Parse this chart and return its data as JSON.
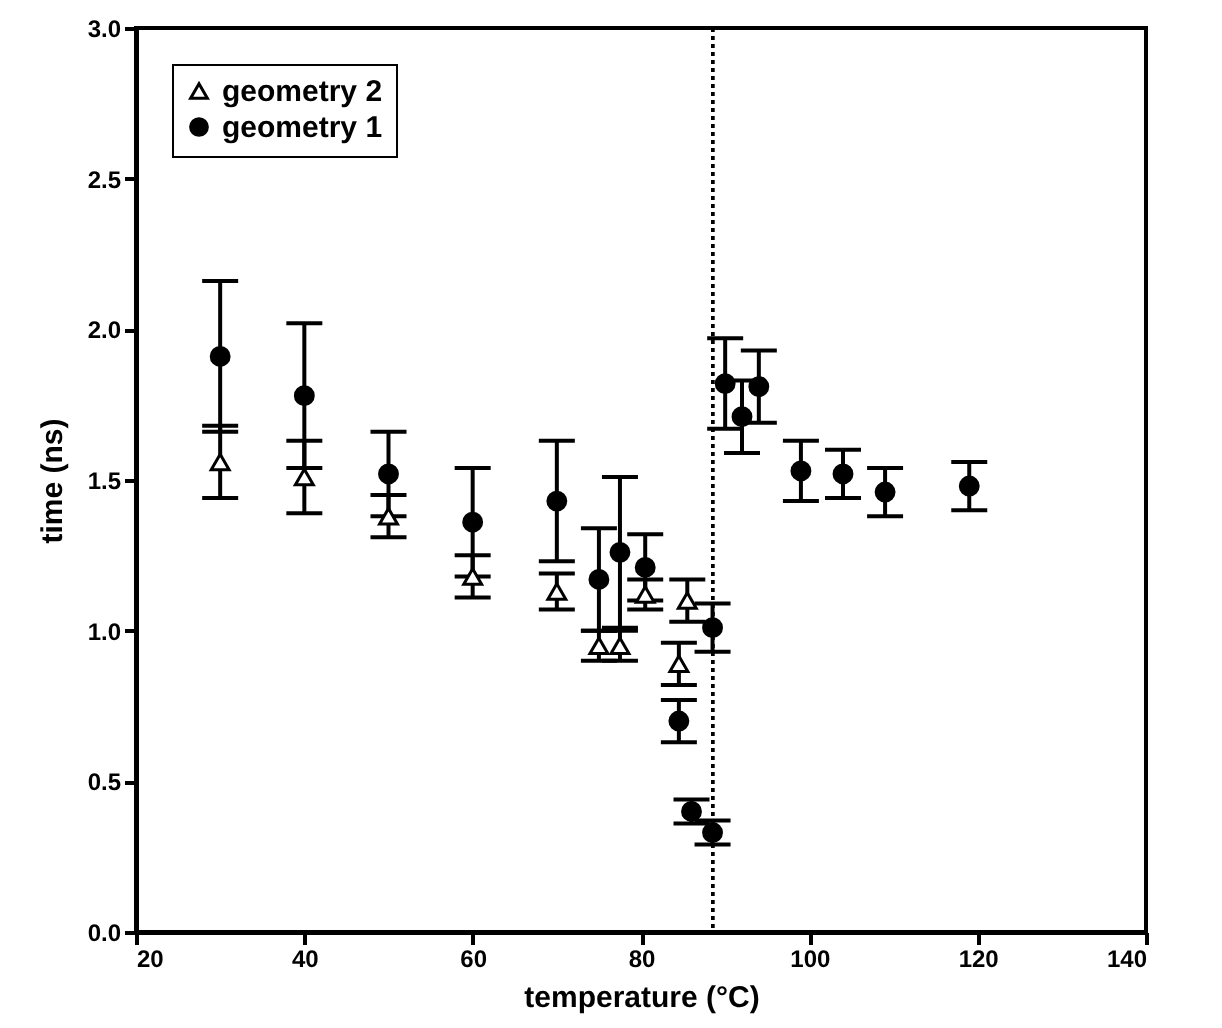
{
  "chart_data": {
    "type": "scatter",
    "xlabel": "temperature (°C)",
    "ylabel": "time (ns)",
    "xlim": [
      20,
      140
    ],
    "xticks": [
      20,
      40,
      60,
      80,
      100,
      120,
      140
    ],
    "ylim": [
      0,
      3
    ],
    "yticks": [
      {
        "value": 0,
        "label": "0.0"
      },
      {
        "value": 0.5,
        "label": "0.5"
      },
      {
        "value": 1,
        "label": "1.0"
      },
      {
        "value": 1.5,
        "label": "1.5"
      },
      {
        "value": 2,
        "label": "2.0"
      },
      {
        "value": 2.5,
        "label": "2.5"
      },
      {
        "value": 3,
        "label": "3.0"
      }
    ],
    "grid": false,
    "legend": "top left",
    "ref_lines": [
      {
        "axis": "x",
        "value": 88.5,
        "line_style": "dotted",
        "color": "#000000"
      }
    ],
    "series": [
      {
        "name": "geometry 2",
        "color": "#000000",
        "marker": "triangle",
        "x": [
          30,
          40,
          50,
          60,
          70,
          75,
          77.5,
          80.5,
          84.5,
          85.5
        ],
        "values": [
          1.56,
          1.51,
          1.38,
          1.18,
          1.13,
          0.95,
          0.95,
          1.12,
          0.89,
          1.1
        ],
        "errors": [
          0.12,
          0.12,
          0.07,
          0.07,
          0.06,
          0.05,
          0.05,
          0.05,
          0.07,
          0.07
        ]
      },
      {
        "name": "geometry 1",
        "color": "#000000",
        "marker": "circle",
        "x": [
          30,
          40,
          50,
          60,
          70,
          75,
          77.5,
          80.5,
          84.5,
          86,
          88.5,
          88.5,
          90,
          92,
          94,
          99,
          104,
          109,
          119
        ],
        "values": [
          1.91,
          1.78,
          1.52,
          1.36,
          1.43,
          1.17,
          1.26,
          1.21,
          0.7,
          0.4,
          0.33,
          1.01,
          1.82,
          1.71,
          1.81,
          1.53,
          1.52,
          1.46,
          1.48
        ],
        "errors": [
          0.25,
          0.24,
          0.14,
          0.18,
          0.2,
          0.17,
          0.25,
          0.11,
          0.07,
          0.04,
          0.04,
          0.08,
          0.15,
          0.12,
          0.12,
          0.1,
          0.08,
          0.08,
          0.08
        ]
      }
    ]
  }
}
